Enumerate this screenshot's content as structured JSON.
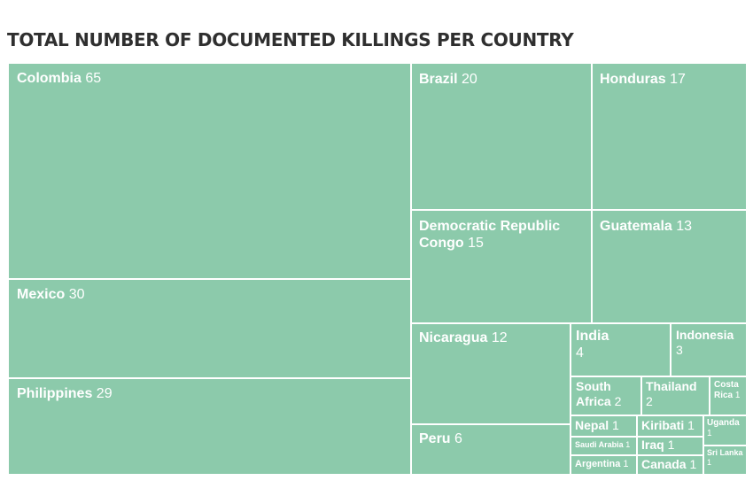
{
  "chart_data": {
    "type": "treemap",
    "title": "TOTAL NUMBER OF DOCUMENTED KILLINGS PER COUNTRY",
    "cell_color": "#8ccaab",
    "label_color": "#ffffff",
    "items": [
      {
        "name": "Colombia",
        "value": 65
      },
      {
        "name": "Mexico",
        "value": 30
      },
      {
        "name": "Philippines",
        "value": 29
      },
      {
        "name": "Brazil",
        "value": 20
      },
      {
        "name": "Honduras",
        "value": 17
      },
      {
        "name": "Democratic Republic Congo",
        "value": 15
      },
      {
        "name": "Guatemala",
        "value": 13
      },
      {
        "name": "Nicaragua",
        "value": 12
      },
      {
        "name": "Peru",
        "value": 6
      },
      {
        "name": "India",
        "value": 4
      },
      {
        "name": "Indonesia",
        "value": 3
      },
      {
        "name": "South Africa",
        "value": 2
      },
      {
        "name": "Thailand",
        "value": 2
      },
      {
        "name": "Costa Rica",
        "value": 1
      },
      {
        "name": "Nepal",
        "value": 1
      },
      {
        "name": "Kiribati",
        "value": 1
      },
      {
        "name": "Uganda",
        "value": 1
      },
      {
        "name": "Saudi Arabia",
        "value": 1
      },
      {
        "name": "Iraq",
        "value": 1
      },
      {
        "name": "Sri Lanka",
        "value": 1
      },
      {
        "name": "Argentina",
        "value": 1
      },
      {
        "name": "Canada",
        "value": 1
      }
    ]
  }
}
